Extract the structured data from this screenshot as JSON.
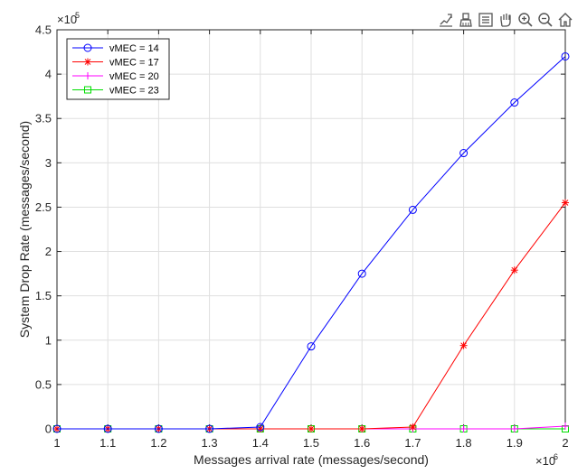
{
  "chart_data": {
    "type": "line",
    "title": "",
    "xlabel": "Messages arrival rate (messages/second)",
    "ylabel": "System Drop Rate (messages/second)",
    "x_exponent_label": "×10",
    "x_exponent": "6",
    "y_exponent_label": "×10",
    "y_exponent": "5",
    "x": [
      1.0,
      1.1,
      1.2,
      1.3,
      1.4,
      1.5,
      1.6,
      1.7,
      1.8,
      1.9,
      2.0
    ],
    "xlim": [
      1,
      2
    ],
    "ylim": [
      0,
      4.5
    ],
    "x_ticks": [
      1,
      1.1,
      1.2,
      1.3,
      1.4,
      1.5,
      1.6,
      1.7,
      1.8,
      1.9,
      2
    ],
    "x_tick_labels": [
      "1",
      "1.1",
      "1.2",
      "1.3",
      "1.4",
      "1.5",
      "1.6",
      "1.7",
      "1.8",
      "1.9",
      "2"
    ],
    "y_ticks": [
      0,
      0.5,
      1,
      1.5,
      2,
      2.5,
      3,
      3.5,
      4,
      4.5
    ],
    "y_tick_labels": [
      "0",
      "0.5",
      "1",
      "1.5",
      "2",
      "2.5",
      "3",
      "3.5",
      "4",
      "4.5"
    ],
    "grid": true,
    "legend_position": "top-left",
    "series": [
      {
        "name": "vMEC = 14",
        "color": "#0000ff",
        "marker": "circle",
        "values": [
          0,
          0,
          0,
          0,
          0.02,
          0.93,
          1.75,
          2.47,
          3.11,
          3.68,
          4.2
        ]
      },
      {
        "name": "vMEC = 17",
        "color": "#ff0000",
        "marker": "asterisk",
        "values": [
          0,
          0,
          0,
          0,
          0,
          0,
          0,
          0.02,
          0.94,
          1.79,
          2.55
        ]
      },
      {
        "name": "vMEC = 20",
        "color": "#ff00ff",
        "marker": "plus",
        "values": [
          0,
          0,
          0,
          0,
          0,
          0,
          0,
          0,
          0,
          0,
          0.03
        ]
      },
      {
        "name": "vMEC = 23",
        "color": "#00dd00",
        "marker": "square",
        "values": [
          0,
          0,
          0,
          0,
          0,
          0,
          0,
          0,
          0,
          0,
          0
        ]
      }
    ]
  },
  "toolbar": {
    "icons": [
      "data-tips-icon",
      "brush-icon",
      "data-cursor-icon",
      "pan-hand-icon",
      "zoom-in-icon",
      "zoom-out-icon",
      "home-icon"
    ]
  }
}
